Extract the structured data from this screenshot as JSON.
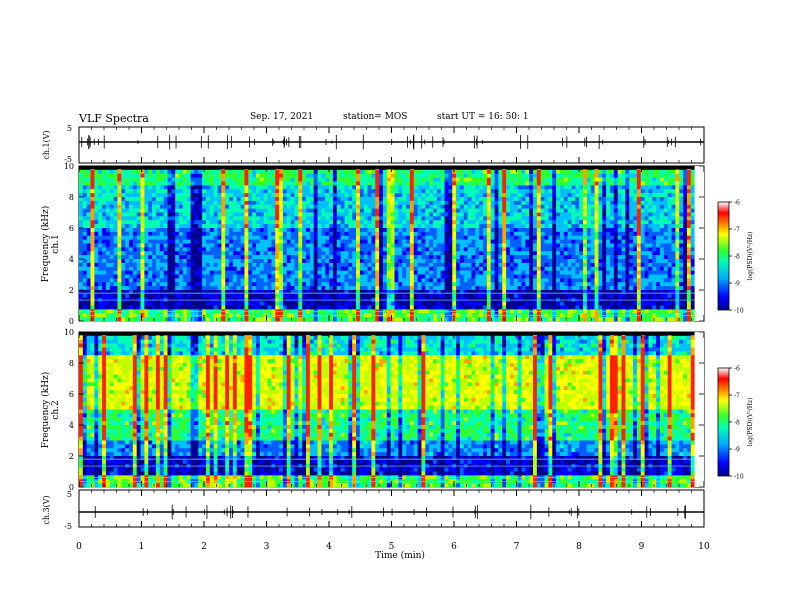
{
  "header": {
    "title": "VLF Spectra",
    "date": "Sep. 17, 2021",
    "station": "station= MOS",
    "start": "start  UT =   16: 50: 1"
  },
  "chart_data": [
    {
      "type": "line",
      "name": "ch1-waveform",
      "ylabel": "ch.1(V)",
      "ylim": [
        -5,
        5
      ],
      "yticks": [
        "5",
        "-5"
      ],
      "xlim": [
        0,
        10
      ],
      "baseline": 0
    },
    {
      "type": "heatmap",
      "name": "ch1-spectrogram",
      "ylabel": "ch.1 Frequency (kHz)",
      "ylim": [
        0,
        10
      ],
      "yticks": [
        "0",
        "2",
        "4",
        "6",
        "8",
        "10"
      ],
      "xlim": [
        0,
        9.85
      ],
      "colorbar": {
        "label": "log(PSD)(V²/Hz)",
        "range": [
          -10,
          -6
        ],
        "ticks": [
          "-6",
          "-7",
          "-8",
          "-9",
          "-10"
        ]
      },
      "dominant_level": "low (-9 to -8)"
    },
    {
      "type": "heatmap",
      "name": "ch2-spectrogram",
      "ylabel": "ch.2 Frequency (kHz)",
      "ylim": [
        0,
        10
      ],
      "yticks": [
        "0",
        "2",
        "4",
        "6",
        "8",
        "10"
      ],
      "xlim": [
        0,
        9.85
      ],
      "colorbar": {
        "label": "log(PSD)(V²/Hz)",
        "range": [
          -10,
          -6
        ],
        "ticks": [
          "-6",
          "-7",
          "-8",
          "-9",
          "-10"
        ]
      },
      "dominant_level": "high (-7 to -6) between 5 and 8 kHz"
    },
    {
      "type": "line",
      "name": "ch3-waveform",
      "ylabel": "ch.3(V)",
      "ylim": [
        -5,
        5
      ],
      "yticks": [
        "5",
        "-5"
      ],
      "xlim": [
        0,
        10
      ],
      "baseline": 0
    }
  ],
  "xaxis": {
    "label": "Time  (min)",
    "ticks": [
      "0",
      "1",
      "2",
      "3",
      "4",
      "5",
      "6",
      "7",
      "8",
      "9",
      "10"
    ]
  },
  "colors": {
    "cmap": [
      "#00008f",
      "#0000ff",
      "#0060ff",
      "#00c0ff",
      "#00ffb0",
      "#30ff30",
      "#c0ff00",
      "#ffff00",
      "#ffa000",
      "#ff2000",
      "#ffffff"
    ]
  }
}
